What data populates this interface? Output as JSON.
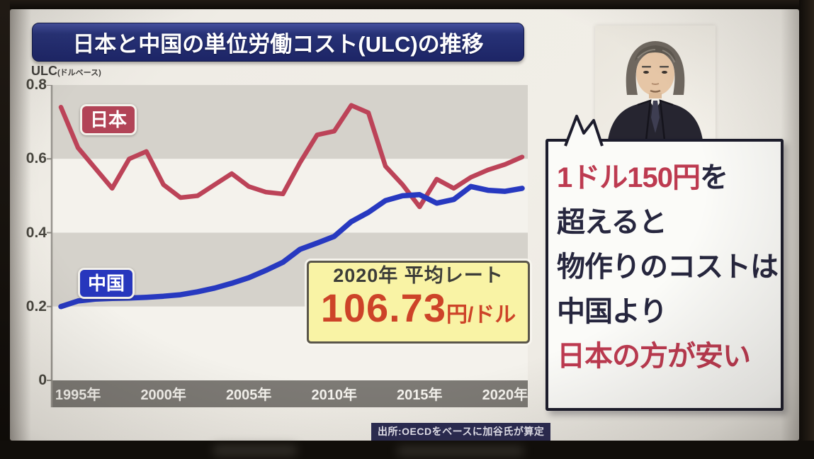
{
  "screen": {
    "title": "日本と中国の単位労働コスト(ULC)の推移",
    "y_axis_unit": {
      "main": "ULC",
      "sub": "(ドルベース)"
    },
    "source": "出所:OECDをベースに加谷氏が算定"
  },
  "badges": {
    "japan": "日本",
    "china": "中国"
  },
  "chart_data": {
    "type": "line",
    "title": "日本と中国の単位労働コスト(ULC)の推移",
    "ylabel": "ULC(ドルベース)",
    "ylim": [
      0,
      0.8
    ],
    "grid": "alternating-horizontal-bands",
    "legend_position": "badges-on-lines",
    "x": [
      1994,
      1995,
      1996,
      1997,
      1998,
      1999,
      2000,
      2001,
      2002,
      2003,
      2004,
      2005,
      2006,
      2007,
      2008,
      2009,
      2010,
      2011,
      2012,
      2013,
      2014,
      2015,
      2016,
      2017,
      2018,
      2019,
      2020,
      2021
    ],
    "x_ticks": [
      {
        "year": 1995,
        "label": "1995年"
      },
      {
        "year": 2000,
        "label": "2000年"
      },
      {
        "year": 2005,
        "label": "2005年"
      },
      {
        "year": 2010,
        "label": "2010年"
      },
      {
        "year": 2015,
        "label": "2015年"
      },
      {
        "year": 2020,
        "label": "2020年"
      }
    ],
    "y_ticks": [
      {
        "value": 0.8,
        "label": "0.8"
      },
      {
        "value": 0.6,
        "label": "0.6"
      },
      {
        "value": 0.4,
        "label": "0.4"
      },
      {
        "value": 0.2,
        "label": "0.2"
      },
      {
        "value": 0,
        "label": "0"
      }
    ],
    "series": [
      {
        "name": "日本",
        "color": "#bc4358",
        "values": [
          0.74,
          0.63,
          0.575,
          0.52,
          0.6,
          0.62,
          0.53,
          0.495,
          0.5,
          0.53,
          0.56,
          0.525,
          0.51,
          0.505,
          0.59,
          0.665,
          0.675,
          0.745,
          0.725,
          0.58,
          0.53,
          0.47,
          0.545,
          0.52,
          0.55,
          0.57,
          0.585,
          0.605
        ]
      },
      {
        "name": "中国",
        "color": "#2739c0",
        "values": [
          0.2,
          0.215,
          0.22,
          0.222,
          0.223,
          0.225,
          0.228,
          0.232,
          0.24,
          0.25,
          0.263,
          0.278,
          0.298,
          0.32,
          0.355,
          0.372,
          0.39,
          0.43,
          0.455,
          0.487,
          0.5,
          0.503,
          0.48,
          0.49,
          0.525,
          0.515,
          0.512,
          0.52
        ]
      }
    ]
  },
  "annotations": {
    "rate_box": {
      "line1": "2020年 平均レート",
      "value": "106.73",
      "unit": "円/ドル"
    },
    "speech_bubble": {
      "lines": [
        [
          {
            "text": "1ドル150円",
            "color": "red"
          },
          {
            "text": "を",
            "color": "dark"
          }
        ],
        [
          {
            "text": "超えると",
            "color": "dark"
          }
        ],
        [
          {
            "text": "物作りのコストは",
            "color": "dark"
          }
        ],
        [
          {
            "text": "中国より",
            "color": "dark"
          }
        ],
        [
          {
            "text": "日本の方が安い",
            "color": "red"
          }
        ]
      ]
    }
  },
  "colors": {
    "japan_line": "#bc4358",
    "china_line": "#2739c0",
    "rate_value_red": "#cd4328",
    "bubble_red": "#bd3a50",
    "title_bar_blue": "#273277",
    "axis_band_gray": "#7d7a75",
    "band_gray": "#d5d2cb",
    "band_light": "#f4f2ec",
    "rate_box_yellow": "#f9f3a5"
  }
}
